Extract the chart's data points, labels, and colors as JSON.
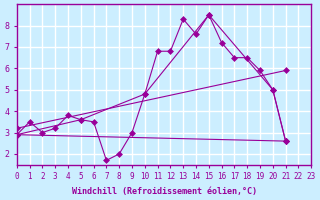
{
  "background_color": "#cceeff",
  "grid_color": "#ffffff",
  "line_color": "#990099",
  "xlabel": "Windchill (Refroidissement éolien,°C)",
  "ylabel": "",
  "xlim": [
    0,
    23
  ],
  "ylim": [
    1.5,
    9.0
  ],
  "yticks": [
    2,
    3,
    4,
    5,
    6,
    7,
    8
  ],
  "xticks": [
    0,
    1,
    2,
    3,
    4,
    5,
    6,
    7,
    8,
    9,
    10,
    11,
    12,
    13,
    14,
    15,
    16,
    17,
    18,
    19,
    20,
    21,
    22,
    23
  ],
  "line1_y": [
    2.9,
    3.5,
    3.0,
    3.2,
    3.8,
    3.6,
    3.5,
    1.7,
    2.0,
    3.0,
    4.8,
    6.8,
    6.8,
    8.3,
    7.6,
    8.5,
    7.2,
    6.5,
    6.5,
    5.9,
    5.0,
    2.6,
    null,
    null
  ],
  "line2_x": [
    0,
    5,
    10,
    15,
    20,
    21
  ],
  "line2_y": [
    2.9,
    3.6,
    4.8,
    8.5,
    5.0,
    2.6
  ],
  "line3_x": [
    0,
    21
  ],
  "line3_y": [
    2.9,
    2.6
  ],
  "line4_x": [
    0,
    21
  ],
  "line4_y": [
    3.2,
    5.9
  ]
}
